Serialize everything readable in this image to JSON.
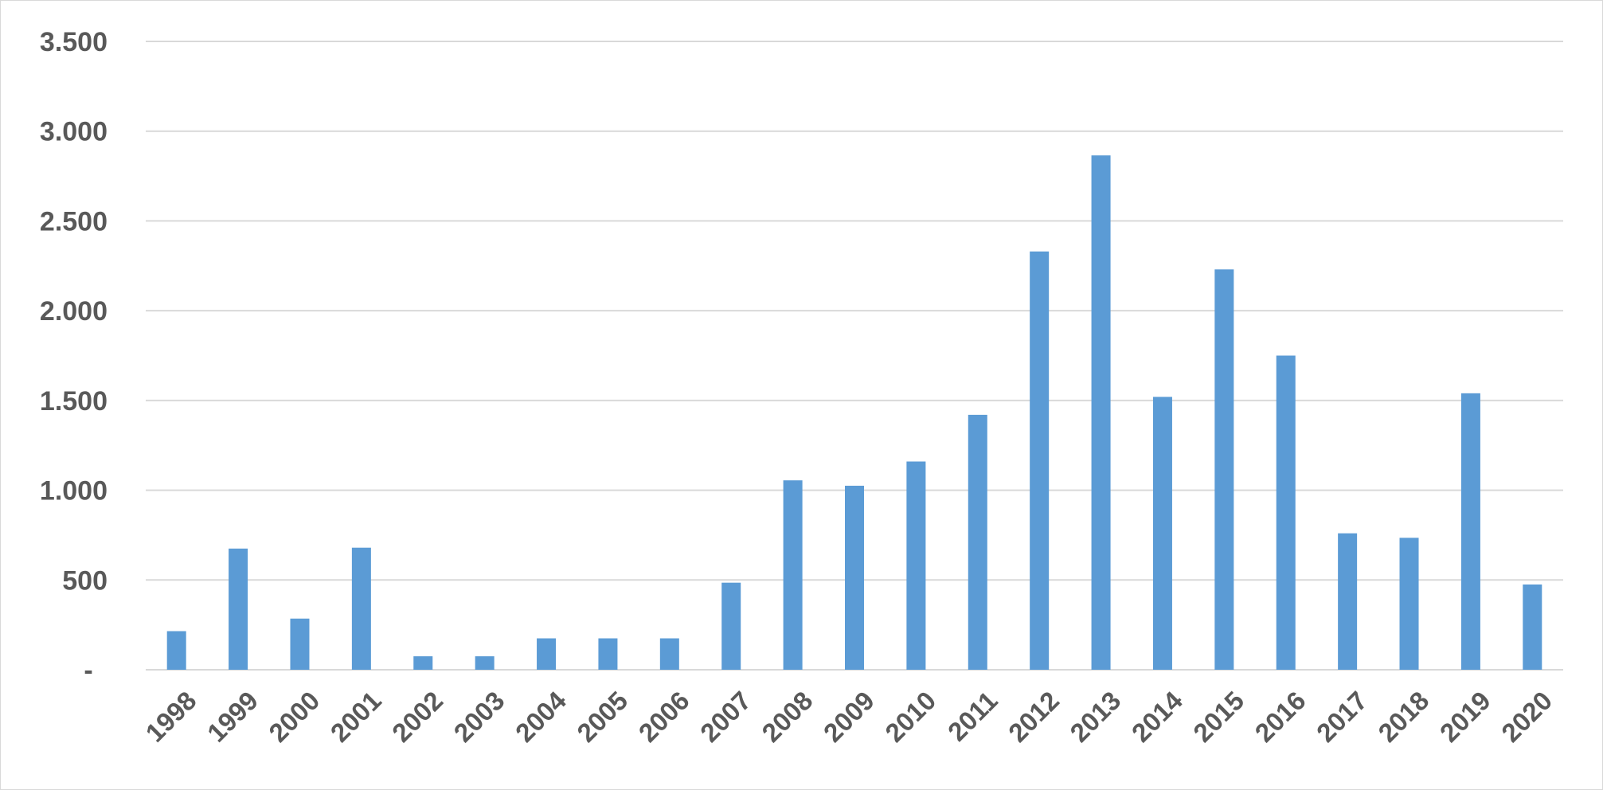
{
  "chart_data": {
    "type": "bar",
    "title": "",
    "xlabel": "",
    "ylabel": "",
    "categories": [
      "1998",
      "1999",
      "2000",
      "2001",
      "2002",
      "2003",
      "2004",
      "2005",
      "2006",
      "2007",
      "2008",
      "2009",
      "2010",
      "2011",
      "2012",
      "2013",
      "2014",
      "2015",
      "2016",
      "2017",
      "2018",
      "2019",
      "2020"
    ],
    "series": [
      {
        "values": [
          215,
          675,
          285,
          680,
          75,
          75,
          175,
          175,
          175,
          485,
          1055,
          1025,
          1160,
          1420,
          2330,
          2865,
          1520,
          2230,
          1750,
          760,
          735,
          1540,
          475
        ]
      }
    ],
    "ylim": [
      0,
      3500
    ],
    "yticks": [
      0,
      500,
      1000,
      1500,
      2000,
      2500,
      3000,
      3500
    ],
    "ytick_labels": [
      "-",
      "500",
      "1.000",
      "1.500",
      "2.000",
      "2.500",
      "3.000",
      "3.500"
    ],
    "grid": true,
    "legend": "none",
    "colors": {
      "bar": "#5b9bd5",
      "grid": "#d9d9d9",
      "axis": "#d9d9d9",
      "text": "#595959"
    }
  }
}
